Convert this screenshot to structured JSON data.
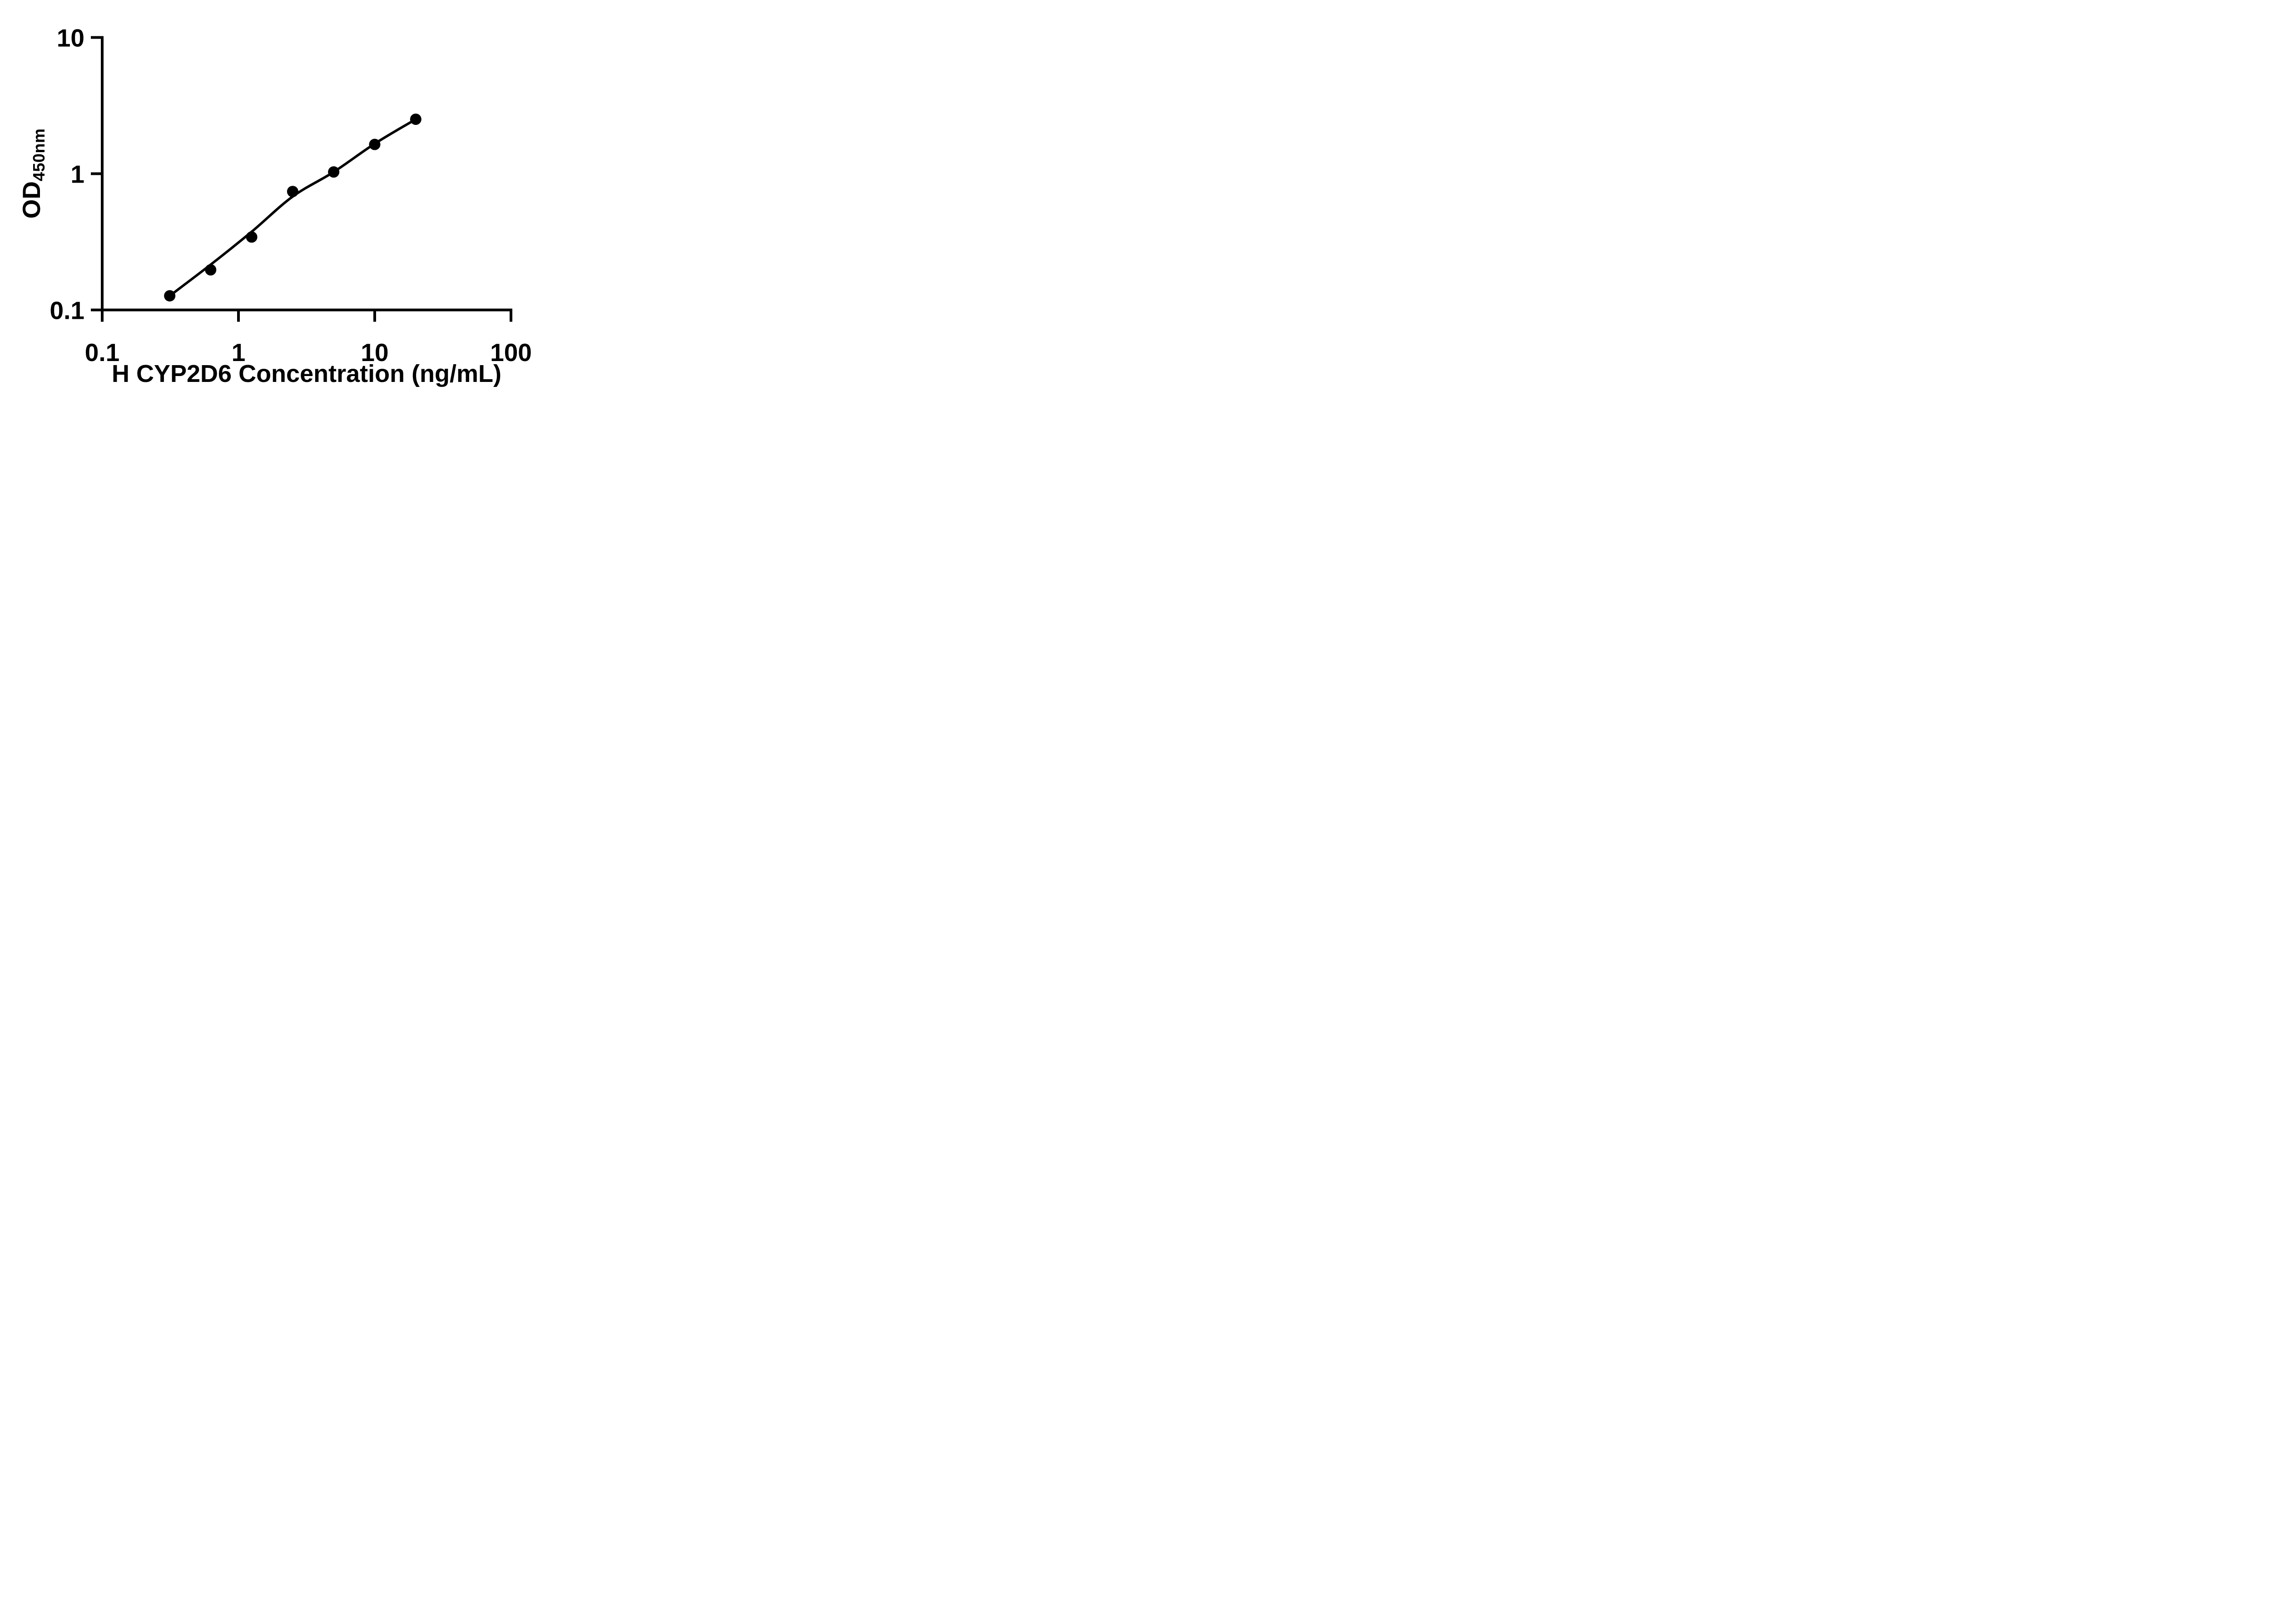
{
  "figure": {
    "background_color": "#ffffff",
    "foreground_color": "#000000"
  },
  "chart_data": {
    "type": "scatter",
    "title": "",
    "xlabel": "H CYP2D6 Concentration (ng/mL)",
    "ylabel_main": "OD",
    "ylabel_subscript": "450nm",
    "x_scale": "log",
    "y_scale": "log",
    "xlim": [
      0.1,
      100
    ],
    "ylim": [
      0.1,
      10
    ],
    "grid": false,
    "legend_position": "none",
    "x_ticks": [
      {
        "value": 0.1,
        "label": "0.1"
      },
      {
        "value": 1,
        "label": "1"
      },
      {
        "value": 10,
        "label": "10"
      },
      {
        "value": 100,
        "label": "100"
      }
    ],
    "y_ticks": [
      {
        "value": 10,
        "label": "10"
      },
      {
        "value": 1,
        "label": "1"
      },
      {
        "value": 0.1,
        "label": "0.1"
      }
    ],
    "series": [
      {
        "name": "standard-curve-points",
        "marker": "filled-circle",
        "color": "#000000",
        "points": [
          {
            "x": 0.313,
            "y": 0.127
          },
          {
            "x": 0.625,
            "y": 0.197
          },
          {
            "x": 1.25,
            "y": 0.343
          },
          {
            "x": 2.5,
            "y": 0.74
          },
          {
            "x": 5,
            "y": 1.03
          },
          {
            "x": 10,
            "y": 1.64
          },
          {
            "x": 20,
            "y": 2.51
          }
        ]
      }
    ],
    "fit_curve": {
      "name": "fitted-standard-curve",
      "color": "#000000",
      "points": [
        {
          "x": 0.313,
          "y": 0.127
        },
        {
          "x": 0.625,
          "y": 0.215
        },
        {
          "x": 1.25,
          "y": 0.375
        },
        {
          "x": 2.5,
          "y": 0.68
        },
        {
          "x": 5,
          "y": 1.03
        },
        {
          "x": 10,
          "y": 1.66
        },
        {
          "x": 20,
          "y": 2.51
        }
      ]
    }
  }
}
